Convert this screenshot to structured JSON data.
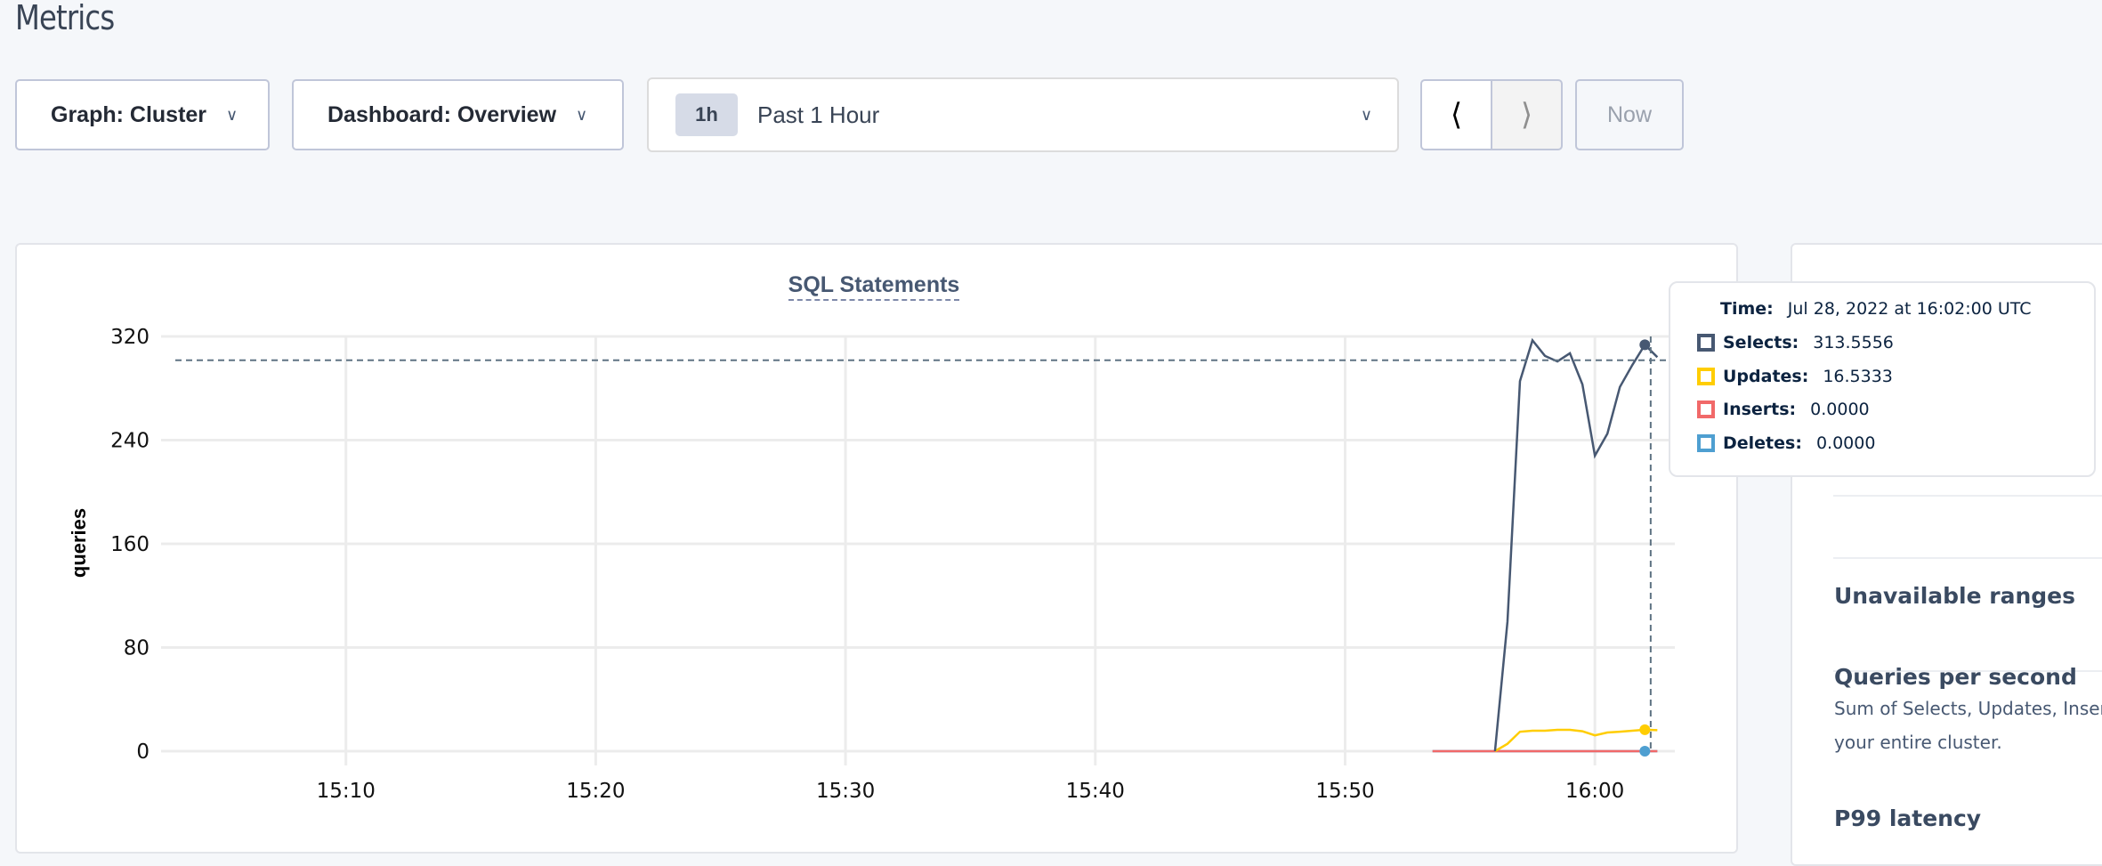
{
  "page": {
    "title": "Metrics"
  },
  "toolbar": {
    "graph_label": "Graph: Cluster",
    "dashboard_label": "Dashboard: Overview",
    "time_badge": "1h",
    "time_label": "Past 1 Hour",
    "prev_icon": "chevron-left-icon",
    "next_icon": "chevron-right-icon",
    "now_label": "Now"
  },
  "tooltip": {
    "time_key": "Time:",
    "time_value": "Jul 28, 2022 at 16:02:00 UTC",
    "rows": [
      {
        "key": "Selects:",
        "value": "313.5556",
        "color": "#475872"
      },
      {
        "key": "Updates:",
        "value": "16.5333",
        "color": "#ffcd02"
      },
      {
        "key": "Inserts:",
        "value": "0.0000",
        "color": "#f16969"
      },
      {
        "key": "Deletes:",
        "value": "0.0000",
        "color": "#4e9fd1"
      }
    ]
  },
  "side_panel": {
    "items": [
      {
        "title": "Unavailable ranges"
      },
      {
        "title": "Queries per second",
        "desc": [
          "Sum of Selects, Updates, Inser",
          "your entire cluster."
        ]
      },
      {
        "title": "P99 latency"
      }
    ]
  },
  "chart_data": {
    "type": "line",
    "title": "SQL Statements",
    "xlabel": "",
    "ylabel": "queries",
    "xlim": [
      "15:02:36",
      "16:03:12"
    ],
    "ylim": [
      0,
      320
    ],
    "xticks": [
      "15:10",
      "15:20",
      "15:30",
      "15:40",
      "15:50",
      "16:00"
    ],
    "yticks": [
      0,
      80,
      160,
      240,
      320
    ],
    "grid": true,
    "crosshair": {
      "x": "16:02:14",
      "y": 301.6
    },
    "hover_x": "16:02:00",
    "series": [
      {
        "name": "Deletes",
        "color": "#4e9fd1",
        "x": [
          "15:53:30",
          "16:02:30"
        ],
        "values": [
          0,
          0
        ]
      },
      {
        "name": "Inserts",
        "color": "#f16969",
        "x": [
          "15:53:30",
          "16:02:30"
        ],
        "values": [
          0,
          0
        ]
      },
      {
        "name": "Updates",
        "color": "#ffcd02",
        "x": [
          "15:56:00",
          "15:56:30",
          "15:57:00",
          "15:57:30",
          "15:58:00",
          "15:58:30",
          "15:59:00",
          "15:59:30",
          "16:00:00",
          "16:00:30",
          "16:01:00",
          "16:01:30",
          "16:02:00",
          "16:02:30"
        ],
        "values": [
          0,
          5.7,
          15,
          15.8,
          15.8,
          16.5,
          16.5,
          15.4,
          12.2,
          14.4,
          15,
          15.8,
          16.5333,
          16.2
        ]
      },
      {
        "name": "Selects",
        "color": "#475872",
        "x": [
          "15:56:00",
          "15:56:30",
          "15:57:00",
          "15:57:30",
          "15:58:00",
          "15:58:30",
          "15:59:00",
          "15:59:30",
          "16:00:00",
          "16:00:30",
          "16:01:00",
          "16:01:30",
          "16:02:00",
          "16:02:30"
        ],
        "values": [
          0,
          100,
          285.5,
          317,
          305,
          300.7,
          307,
          283,
          228,
          245,
          281,
          298,
          313.5556,
          304
        ]
      }
    ]
  }
}
